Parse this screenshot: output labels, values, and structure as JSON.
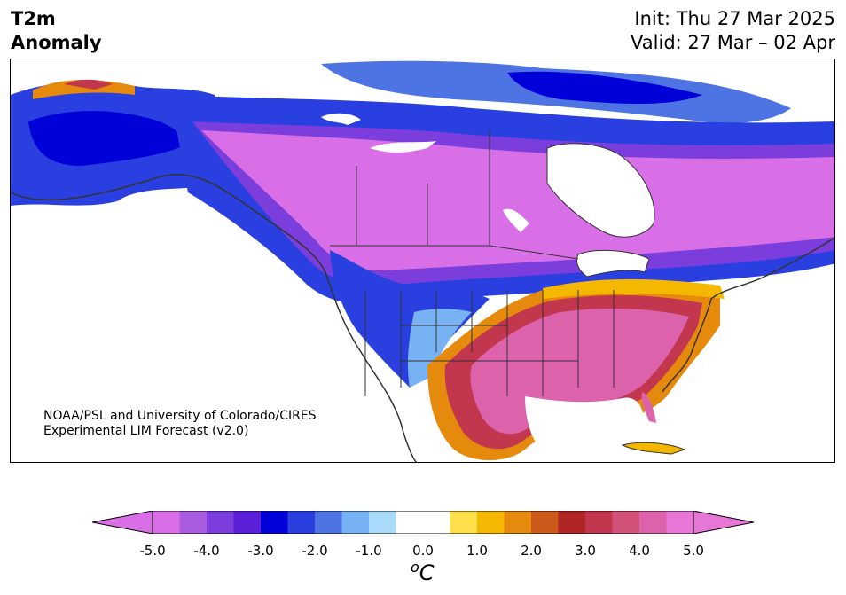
{
  "title": {
    "variable": "T2m",
    "quantity": "Anomaly",
    "init": "Init: Thu 27 Mar 2025",
    "valid": "Valid: 27 Mar – 02 Apr"
  },
  "credit": {
    "line1": "NOAA/PSL and University of Colorado/CIRES",
    "line2": "Experimental LIM Forecast (v2.0)"
  },
  "colorbar": {
    "unit_symbol": "o",
    "unit_letter": "C",
    "range": [
      -5.0,
      5.0
    ],
    "extend": "both",
    "tick_labels": [
      "-5.0",
      "-4.0",
      "-3.0",
      "-2.0",
      "-1.0",
      "0.0",
      "1.0",
      "2.0",
      "3.0",
      "4.0",
      "5.0"
    ],
    "colors": [
      "#d86fe6",
      "#a95ce0",
      "#7b3ddb",
      "#5a1fd6",
      "#0000d8",
      "#2a3fe0",
      "#4e74e4",
      "#77b2f3",
      "#aadbfa",
      "#ffffff",
      "#ffffff",
      "#ffe04a",
      "#f5b800",
      "#e58a0c",
      "#cc5a1a",
      "#b02626",
      "#c2364e",
      "#d2527a",
      "#dc62ac",
      "#e777d6"
    ],
    "under_color": "#d86fe6",
    "over_color": "#e777d6"
  },
  "map": {
    "region": "North America",
    "land_color": "#ffffff",
    "border_color": "#333333"
  }
}
